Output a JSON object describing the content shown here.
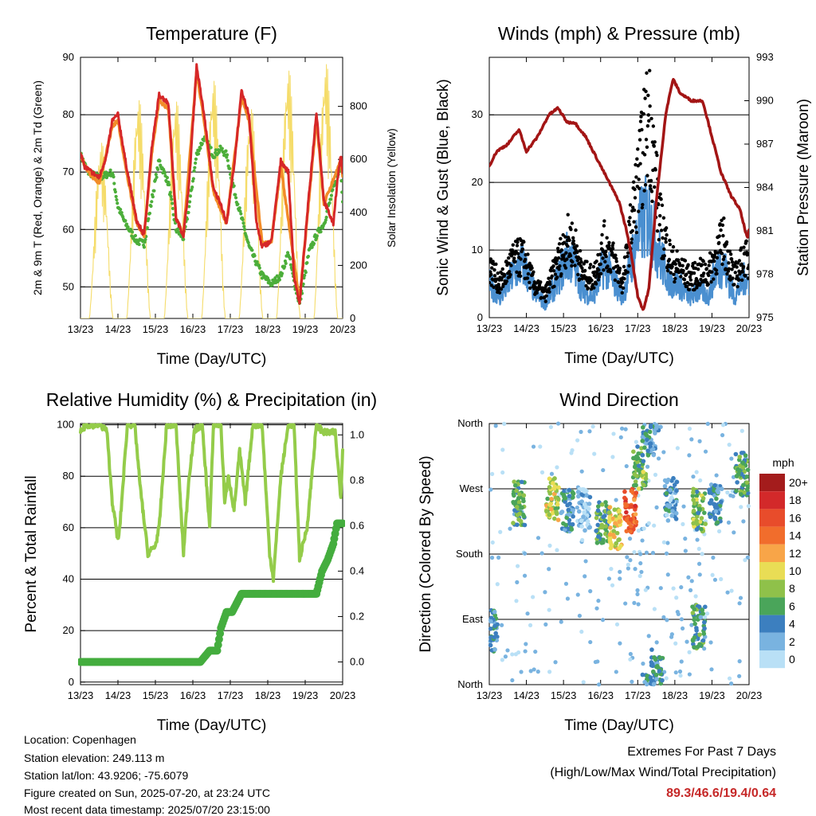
{
  "chart_data": [
    {
      "type": "line",
      "title": "Temperature (F)",
      "xlabel": "Time (Day/UTC)",
      "ylabel": "2m & 9m T (Red, Orange) & 2m Td (Green)",
      "y2label": "Solar Insolation (Yellow)",
      "x_ticks": [
        "13/23",
        "14/23",
        "15/23",
        "16/23",
        "17/23",
        "18/23",
        "19/23",
        "20/23"
      ],
      "ylim": [
        44.5,
        90
      ],
      "y_ticks": [
        50,
        60,
        70,
        80,
        90
      ],
      "y2lim": [
        0,
        985
      ],
      "y2_ticks": [
        0,
        200,
        400,
        600,
        800
      ],
      "grid": true,
      "colors": {
        "t2m": "#d62728",
        "t9m": "#f28c28",
        "td": "#4cae3a",
        "solar": "#f5dc6a"
      },
      "series": [
        {
          "name": "2m T",
          "x": [
            0,
            0.1,
            0.2,
            0.5,
            0.7,
            0.85,
            1.0,
            1.2,
            1.5,
            1.7,
            1.9,
            2.1,
            2.35,
            2.55,
            2.75,
            2.9,
            3.1,
            3.3,
            3.55,
            3.75,
            3.9,
            4.1,
            4.3,
            4.5,
            4.7,
            4.85,
            5.1,
            5.35,
            5.55,
            5.7,
            5.85,
            6.1,
            6.3,
            6.5,
            6.75,
            6.85,
            6.95,
            7.0
          ],
          "y": [
            73.5,
            71,
            70.5,
            69,
            73,
            79,
            80,
            72,
            61.5,
            59,
            74,
            83.5,
            82,
            62,
            59,
            68,
            88.5,
            80,
            67,
            64.5,
            61,
            71,
            84,
            80,
            61,
            57,
            58,
            72,
            70,
            52,
            47,
            66,
            80.5,
            65,
            61,
            68,
            73,
            70
          ]
        },
        {
          "name": "9m T",
          "x": [
            0,
            0.2,
            0.5,
            0.85,
            1.0,
            1.2,
            1.5,
            1.7,
            1.9,
            2.1,
            2.35,
            2.55,
            2.75,
            3.1,
            3.3,
            3.55,
            3.9,
            4.3,
            4.5,
            4.85,
            5.1,
            5.35,
            5.85,
            6.3,
            6.5,
            6.95,
            7.0
          ],
          "y": [
            73,
            70,
            68,
            78,
            79,
            71,
            61,
            59,
            73,
            82.5,
            81,
            62,
            59,
            87.5,
            79,
            66.5,
            61,
            83,
            79,
            57.5,
            58,
            71,
            47.5,
            79.5,
            64.5,
            72,
            69
          ]
        },
        {
          "name": "2m Td",
          "x": [
            0,
            0.2,
            0.5,
            0.85,
            1.0,
            1.2,
            1.5,
            1.7,
            1.9,
            2.1,
            2.35,
            2.55,
            2.75,
            2.9,
            3.1,
            3.3,
            3.55,
            3.75,
            3.9,
            4.1,
            4.3,
            4.5,
            4.85,
            5.1,
            5.35,
            5.55,
            5.7,
            5.85,
            6.1,
            6.3,
            6.5,
            6.75,
            6.95,
            7.0
          ],
          "y": [
            73,
            70,
            69,
            70,
            64,
            61,
            58,
            57.5,
            65,
            72,
            68,
            60,
            58.5,
            64,
            73,
            76,
            73,
            74,
            73,
            67,
            62,
            57,
            52,
            50.5,
            52,
            56,
            51,
            47,
            56,
            59,
            61,
            67,
            71,
            65
          ]
        },
        {
          "name": "Solar Insolation",
          "axis": "y2",
          "day_peaks": [
            680,
            845,
            840,
            920,
            810,
            960,
            985
          ],
          "peak_offset": 0.55
        }
      ]
    },
    {
      "type": "line",
      "title": "Winds (mph) & Pressure (mb)",
      "xlabel": "Time (Day/UTC)",
      "ylabel": "Sonic Wind & Gust (Blue, Black)",
      "y2label": "Station Pressure (Maroon)",
      "x_ticks": [
        "13/23",
        "14/23",
        "15/23",
        "16/23",
        "17/23",
        "18/23",
        "19/23",
        "20/23"
      ],
      "ylim": [
        0,
        38.5
      ],
      "y_ticks": [
        0,
        10,
        20,
        30
      ],
      "y2lim": [
        975,
        993
      ],
      "y2_ticks": [
        975,
        978,
        981,
        984,
        987,
        990,
        993
      ],
      "grid": true,
      "colors": {
        "wind": "#4a8fd0",
        "gust": "#000000",
        "pressure": "#a31515"
      },
      "series": [
        {
          "name": "Sonic Wind",
          "x": [
            0,
            0.3,
            0.6,
            0.9,
            1.2,
            1.5,
            1.8,
            2.1,
            2.3,
            2.5,
            2.8,
            3.1,
            3.3,
            3.6,
            3.9,
            4.1,
            4.3,
            4.6,
            4.9,
            5.1,
            5.4,
            5.7,
            5.9,
            6.1,
            6.3,
            6.6,
            6.9,
            7.0
          ],
          "y": [
            5,
            3,
            6,
            8,
            4,
            2,
            5,
            9,
            8,
            4,
            3,
            8,
            6,
            3,
            10,
            14,
            15,
            9,
            5,
            5,
            3,
            4,
            3,
            7,
            8,
            3,
            6,
            5
          ]
        },
        {
          "name": "Gust",
          "x": [
            0,
            0.3,
            0.6,
            0.9,
            1.2,
            1.5,
            1.8,
            2.1,
            2.3,
            2.5,
            2.8,
            3.1,
            3.3,
            3.6,
            3.9,
            4.1,
            4.3,
            4.6,
            4.9,
            5.1,
            5.4,
            5.7,
            5.9,
            6.1,
            6.3,
            6.6,
            6.9,
            7.0
          ],
          "y": [
            9,
            6,
            10,
            11,
            6,
            4,
            9,
            14,
            13,
            8,
            7,
            13,
            11,
            6,
            20,
            28,
            36.5,
            17,
            10,
            9,
            7,
            8,
            8,
            11,
            14,
            7,
            11,
            9
          ]
        },
        {
          "name": "Station Pressure",
          "axis": "y2",
          "x": [
            0,
            0.2,
            0.5,
            0.8,
            1.0,
            1.3,
            1.6,
            1.85,
            2.1,
            2.3,
            2.6,
            2.9,
            3.2,
            3.5,
            3.7,
            3.85,
            4.0,
            4.15,
            4.3,
            4.5,
            4.75,
            4.95,
            5.15,
            5.45,
            5.75,
            6.0,
            6.25,
            6.5,
            6.75,
            6.95,
            7.0
          ],
          "y": [
            985.5,
            986.5,
            987,
            988,
            986.5,
            987.5,
            989,
            989.5,
            988.5,
            988.5,
            987.5,
            986,
            984.5,
            983,
            981,
            979,
            976.5,
            975.5,
            977,
            983,
            989,
            991.5,
            990.5,
            990,
            990,
            987.5,
            985,
            983.5,
            982.5,
            980.5,
            981
          ]
        }
      ]
    },
    {
      "type": "line",
      "title": "Relative Humidity (%) & Precipitation (in)",
      "xlabel": "Time (Day/UTC)",
      "ylabel": "Percent & Total Rainfall",
      "x_ticks": [
        "13/23",
        "14/23",
        "15/23",
        "16/23",
        "17/23",
        "18/23",
        "19/23",
        "20/23"
      ],
      "ylim": [
        -1,
        100.5
      ],
      "y_ticks": [
        0,
        20,
        40,
        60,
        80,
        100
      ],
      "y2lim": [
        -0.1,
        1.05
      ],
      "y2_ticks": [
        0.0,
        0.2,
        0.4,
        0.6,
        0.8,
        1.0
      ],
      "grid": true,
      "colors": {
        "rh": "#94cc4a",
        "precip": "#44ad3e"
      },
      "series": [
        {
          "name": "Relative Humidity",
          "x": [
            0,
            0.15,
            0.5,
            0.7,
            0.85,
            1.0,
            1.05,
            1.25,
            1.45,
            1.6,
            1.8,
            2.0,
            2.1,
            2.3,
            2.55,
            2.75,
            2.9,
            3.05,
            3.25,
            3.45,
            3.55,
            3.75,
            3.85,
            3.95,
            4.1,
            4.25,
            4.4,
            4.6,
            4.85,
            5.05,
            5.15,
            5.35,
            5.55,
            5.7,
            5.85,
            6.05,
            6.3,
            6.5,
            6.8,
            6.95,
            7.0
          ],
          "y": [
            97,
            100,
            100,
            98,
            70,
            55,
            60,
            100,
            100,
            75,
            50,
            53,
            60,
            100,
            100,
            50,
            80,
            98,
            100,
            60,
            100,
            100,
            70,
            80,
            67,
            90,
            70,
            100,
            100,
            50,
            40,
            80,
            100,
            100,
            48,
            60,
            100,
            97,
            97,
            72,
            90
          ]
        },
        {
          "name": "Total Rainfall",
          "axis": "y2",
          "x": [
            0,
            3.2,
            3.45,
            3.65,
            3.75,
            3.9,
            4.05,
            4.3,
            4.5,
            6.3,
            6.45,
            6.6,
            6.75,
            6.85,
            7.0
          ],
          "y": [
            0,
            0,
            0.05,
            0.05,
            0.15,
            0.22,
            0.22,
            0.3,
            0.3,
            0.3,
            0.4,
            0.45,
            0.52,
            0.61,
            0.61
          ]
        }
      ]
    },
    {
      "type": "scatter",
      "title": "Wind Direction",
      "xlabel": "Time (Day/UTC)",
      "ylabel": "Direction (Colored By Speed)",
      "x_ticks": [
        "13/23",
        "14/23",
        "15/23",
        "16/23",
        "17/23",
        "18/23",
        "19/23",
        "20/23"
      ],
      "y_ticks": [
        "North",
        "East",
        "South",
        "West",
        "North"
      ],
      "ylim": [
        0,
        360
      ],
      "grid": true,
      "legend": {
        "title": "mph",
        "labels": [
          "20+",
          "18",
          "16",
          "14",
          "12",
          "10",
          "8",
          "6",
          "4",
          "2",
          "0"
        ],
        "colors": [
          "#a41c1c",
          "#d3292a",
          "#e84c2b",
          "#f16d2c",
          "#f8a548",
          "#e9dd55",
          "#8fc14a",
          "#4aa55a",
          "#3c7fbf",
          "#79b3e0",
          "#b9e0f6"
        ],
        "placement": "right"
      },
      "clusters": [
        {
          "x": 0.05,
          "dir": 75,
          "speed": 4
        },
        {
          "x": 0.8,
          "dir": 250,
          "speed": 6
        },
        {
          "x": 1.7,
          "dir": 255,
          "speed": 9
        },
        {
          "x": 2.1,
          "dir": 240,
          "speed": 4
        },
        {
          "x": 2.55,
          "dir": 240,
          "speed": 1
        },
        {
          "x": 3.05,
          "dir": 225,
          "speed": 6
        },
        {
          "x": 3.4,
          "dir": 215,
          "speed": 10
        },
        {
          "x": 3.8,
          "dir": 240,
          "speed": 15
        },
        {
          "x": 4.05,
          "dir": 300,
          "speed": 7
        },
        {
          "x": 4.3,
          "dir": 345,
          "speed": 4
        },
        {
          "x": 4.5,
          "dir": 20,
          "speed": 4
        },
        {
          "x": 4.9,
          "dir": 255,
          "speed": 3
        },
        {
          "x": 5.65,
          "dir": 240,
          "speed": 7
        },
        {
          "x": 5.65,
          "dir": 80,
          "speed": 5
        },
        {
          "x": 6.1,
          "dir": 250,
          "speed": 4
        },
        {
          "x": 6.8,
          "dir": 290,
          "speed": 6
        }
      ]
    }
  ],
  "info": {
    "location": "Location: Copenhagen",
    "elevation": "Station elevation: 249.113 m",
    "latlon": "Station lat/lon: 43.9206; -75.6079",
    "created": "Figure created on Sun, 2025-07-20, at 23:24 UTC",
    "latest": "Most recent data timestamp: 2025/07/20 23:15:00"
  },
  "extremes": {
    "title": "Extremes For Past 7 Days",
    "subtitle": "(High/Low/Max Wind/Total Precipitation)",
    "values": "89.3/46.6/19.4/0.64"
  }
}
